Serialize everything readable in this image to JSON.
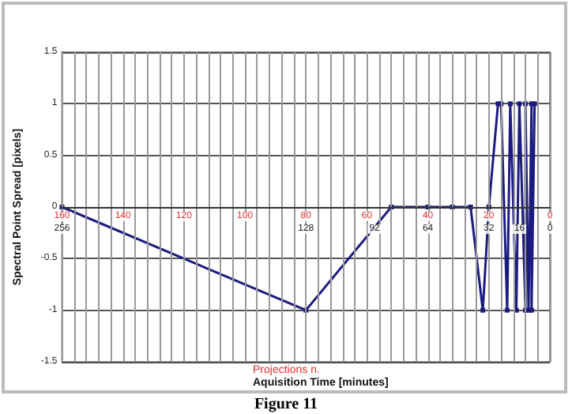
{
  "chart_data": {
    "type": "line",
    "xlabel": "Projections n.",
    "x2label": "Aquisition Time [minutes]",
    "ylabel": "Spectral Point Spread [pixels]",
    "annotations": [
      "Figure 11"
    ],
    "xlim": [
      160,
      0
    ],
    "xticks": [
      160,
      {
        "value": 156,
        "label": null
      },
      {
        "value": 152,
        "label": null
      },
      {
        "value": 148,
        "label": null
      },
      {
        "value": 144,
        "label": null
      },
      140,
      {
        "value": 136,
        "label": null
      },
      {
        "value": 132,
        "label": null
      },
      {
        "value": 128,
        "label": null
      },
      {
        "value": 124,
        "label": null
      },
      120,
      {
        "value": 116,
        "label": null
      },
      {
        "value": 112,
        "label": null
      },
      {
        "value": 108,
        "label": null
      },
      {
        "value": 104,
        "label": null
      },
      100,
      {
        "value": 96,
        "label": null
      },
      {
        "value": 92,
        "label": null
      },
      {
        "value": 88,
        "label": null
      },
      {
        "value": 84,
        "label": null
      },
      80,
      {
        "value": 76,
        "label": null
      },
      {
        "value": 72,
        "label": null
      },
      {
        "value": 68,
        "label": null
      },
      {
        "value": 64,
        "label": null
      },
      60,
      {
        "value": 56,
        "label": null
      },
      {
        "value": 52,
        "label": null
      },
      {
        "value": 48,
        "label": null
      },
      {
        "value": 44,
        "label": null
      },
      40,
      {
        "value": 36,
        "label": null
      },
      {
        "value": 32,
        "label": null
      },
      {
        "value": 28,
        "label": null
      },
      {
        "value": 24,
        "label": null
      },
      20,
      {
        "value": 16,
        "label": null
      },
      {
        "value": 12,
        "label": null
      },
      {
        "value": 8,
        "label": null
      },
      {
        "value": 4,
        "label": null
      },
      0
    ],
    "x2lim": [
      256,
      0
    ],
    "x2ticks": [
      256,
      128,
      92,
      64,
      32,
      16,
      0
    ],
    "ylim": [
      -1.5,
      1.5
    ],
    "yticks": [
      -1.5,
      -1,
      -0.5,
      0,
      0.5,
      1,
      1.5
    ],
    "grid": true,
    "marker": "square",
    "line_style": "solid",
    "x": [
      160,
      80,
      52,
      40,
      32,
      26,
      22,
      20,
      17,
      16,
      14,
      13,
      11,
      10,
      8,
      8,
      7,
      6,
      6,
      5
    ],
    "series": [
      {
        "color": "#1c1c80",
        "values": [
          0,
          -1,
          0,
          0,
          0,
          0,
          -1,
          0,
          1,
          1,
          -1,
          1,
          -1,
          1,
          -1,
          1,
          -1,
          1,
          -1,
          1
        ]
      }
    ]
  }
}
